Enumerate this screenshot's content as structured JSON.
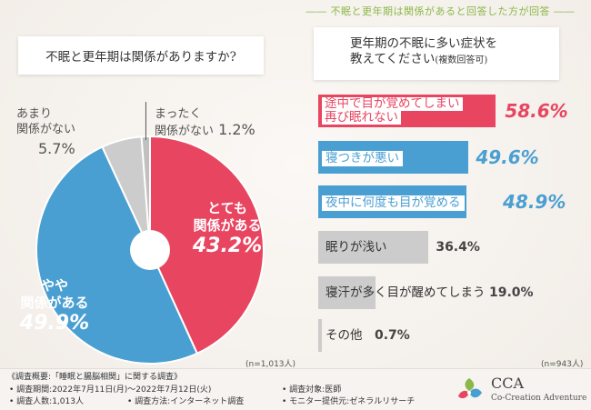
{
  "banner": "―― 不眠と更年期は関係があると回答した方が回答 ――",
  "left_question": "不眠と更年期は関係がありますか?",
  "right_question": {
    "line1": "更年期の不眠に多い症状を",
    "line2_main": "教えてください",
    "line2_sub": "(複数回答可)"
  },
  "colors": {
    "red": "#e84560",
    "blue": "#4a9fd2",
    "gray": "#cccccc",
    "green": "#8cb84a"
  },
  "chart_data": [
    {
      "type": "pie",
      "title": "不眠と更年期は関係がありますか?",
      "slices": [
        {
          "label_lines": [
            "とても",
            "関係がある"
          ],
          "value": 43.2,
          "display": "43.2%",
          "color": "#e84560"
        },
        {
          "label_lines": [
            "やや",
            "関係がある"
          ],
          "value": 49.9,
          "display": "49.9%",
          "color": "#4a9fd2"
        },
        {
          "label_lines": [
            "あまり",
            "関係がない"
          ],
          "value": 5.7,
          "display": "5.7%",
          "color": "#cccccc"
        },
        {
          "label_lines": [
            "まったく",
            "関係がない"
          ],
          "value": 1.2,
          "display": "1.2%",
          "color": "#c0c0c0"
        }
      ],
      "n": "(n=1,013人)"
    },
    {
      "type": "bar",
      "title": "更年期の不眠に多い症状を教えてください(複数回答可)",
      "items": [
        {
          "label_lines": [
            "途中で目が覚めてしまい",
            "再び眠れない"
          ],
          "value": 58.6,
          "display": "58.6%",
          "color": "#e84560"
        },
        {
          "label_lines": [
            "寝つきが悪い"
          ],
          "value": 49.6,
          "display": "49.6%",
          "color": "#4a9fd2"
        },
        {
          "label_lines": [
            "夜中に何度も目が覚める"
          ],
          "value": 48.9,
          "display": "48.9%",
          "color": "#4a9fd2"
        },
        {
          "label_lines": [
            "眠りが浅い"
          ],
          "value": 36.4,
          "display": "36.4%",
          "color": "#cccccc"
        },
        {
          "label_lines": [
            "寝汗が多く目が醒めてしまう"
          ],
          "value": 19.0,
          "display": "19.0%",
          "color": "#cccccc"
        },
        {
          "label_lines": [
            "その他"
          ],
          "value": 0.7,
          "display": "0.7%",
          "color": "#cccccc"
        }
      ],
      "xlim": [
        0,
        60
      ],
      "n": "(n=943人)"
    }
  ],
  "footer": {
    "title": "《調査概要:「睡眠と腸脳相関」に関する調査》",
    "period": "• 調査期間:2022年7月11日(月)〜2022年7月12日(火)",
    "people": "• 調査人数:1,013人",
    "method": "• 調査方法:インターネット調査",
    "target": "• 調査対象:医師",
    "provider": "• モニター提供元:ゼネラルリサーチ",
    "logo_title": "CCA",
    "logo_sub": "Co-Creation Adventure"
  }
}
